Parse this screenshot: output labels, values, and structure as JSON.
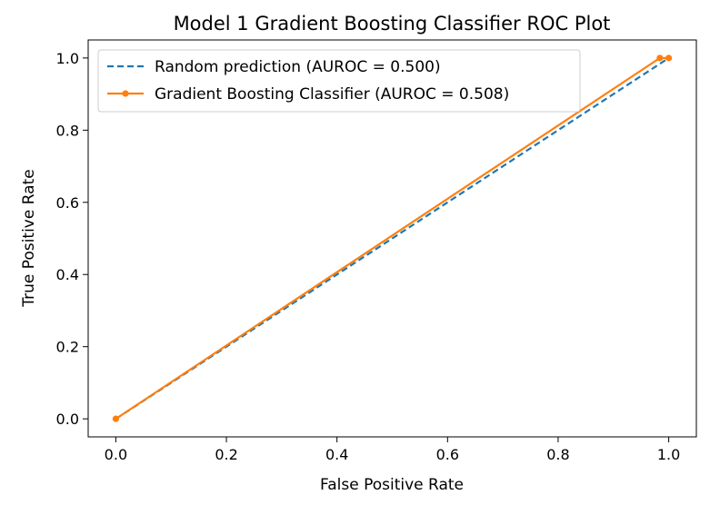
{
  "chart_data": {
    "type": "line",
    "title": "Model 1 Gradient Boosting Classifier ROC Plot",
    "xlabel": "False Positive Rate",
    "ylabel": "True Positive Rate",
    "xlim": [
      -0.05,
      1.05
    ],
    "ylim": [
      -0.05,
      1.05
    ],
    "xticks": [
      0.0,
      0.2,
      0.4,
      0.6,
      0.8,
      1.0
    ],
    "yticks": [
      0.0,
      0.2,
      0.4,
      0.6,
      0.8,
      1.0
    ],
    "xtick_labels": [
      "0.0",
      "0.2",
      "0.4",
      "0.6",
      "0.8",
      "1.0"
    ],
    "ytick_labels": [
      "0.0",
      "0.2",
      "0.4",
      "0.6",
      "0.8",
      "1.0"
    ],
    "grid": false,
    "legend_position": "top-left",
    "series": [
      {
        "name": "Random prediction (AUROC = 0.500)",
        "style": "dashed",
        "color": "#1f77b4",
        "x": [
          0.0,
          1.0
        ],
        "y": [
          0.0,
          1.0
        ]
      },
      {
        "name": "Gradient Boosting Classifier (AUROC = 0.508)",
        "style": "solid",
        "marker": "dot",
        "color": "#ff7f0e",
        "x": [
          0.0,
          0.984,
          1.0
        ],
        "y": [
          0.0,
          1.0,
          1.0
        ]
      }
    ]
  }
}
